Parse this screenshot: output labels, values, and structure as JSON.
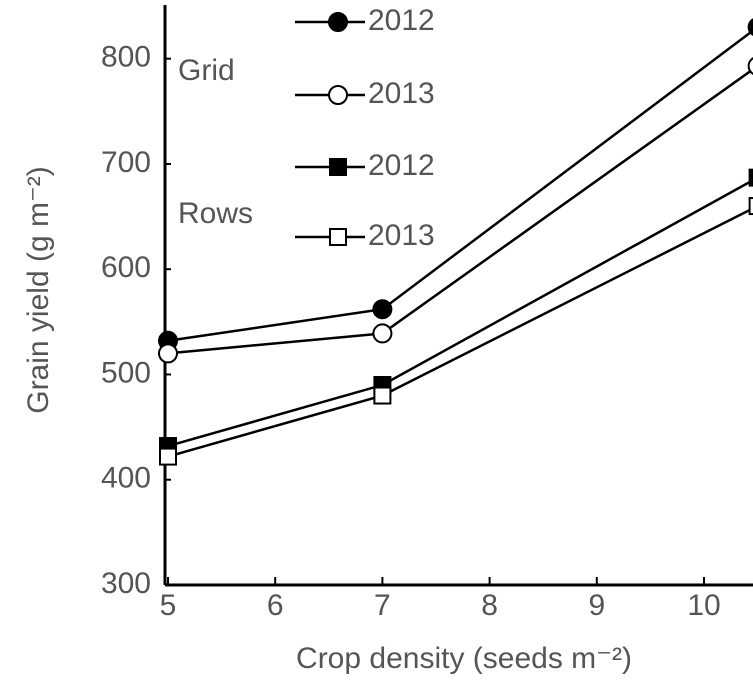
{
  "chart_data": {
    "type": "line",
    "x_label": "Crop density (seeds m⁻²)",
    "y_label": "Grain yield (g m⁻²)",
    "groups": [
      "Grid",
      "Rows"
    ],
    "x": [
      5,
      7,
      10.5
    ],
    "series": [
      {
        "name": "2012",
        "group": "Grid",
        "marker": "circle",
        "filled": true,
        "color": "#000000",
        "values": [
          532,
          562,
          830
        ]
      },
      {
        "name": "2013",
        "group": "Grid",
        "marker": "circle",
        "filled": false,
        "color": "#000000",
        "values": [
          520,
          539,
          793
        ]
      },
      {
        "name": "2012",
        "group": "Rows",
        "marker": "square",
        "filled": true,
        "color": "#000000",
        "values": [
          432,
          490,
          687
        ]
      },
      {
        "name": "2013",
        "group": "Rows",
        "marker": "square",
        "filled": false,
        "color": "#000000",
        "values": [
          422,
          480,
          660
        ]
      }
    ],
    "xlim": [
      4.972,
      10.457
    ],
    "ylim": [
      300,
      851
    ],
    "xticks": [
      5,
      6,
      7,
      8,
      9,
      10
    ],
    "yticks": [
      300,
      400,
      500,
      600,
      700,
      800
    ]
  }
}
